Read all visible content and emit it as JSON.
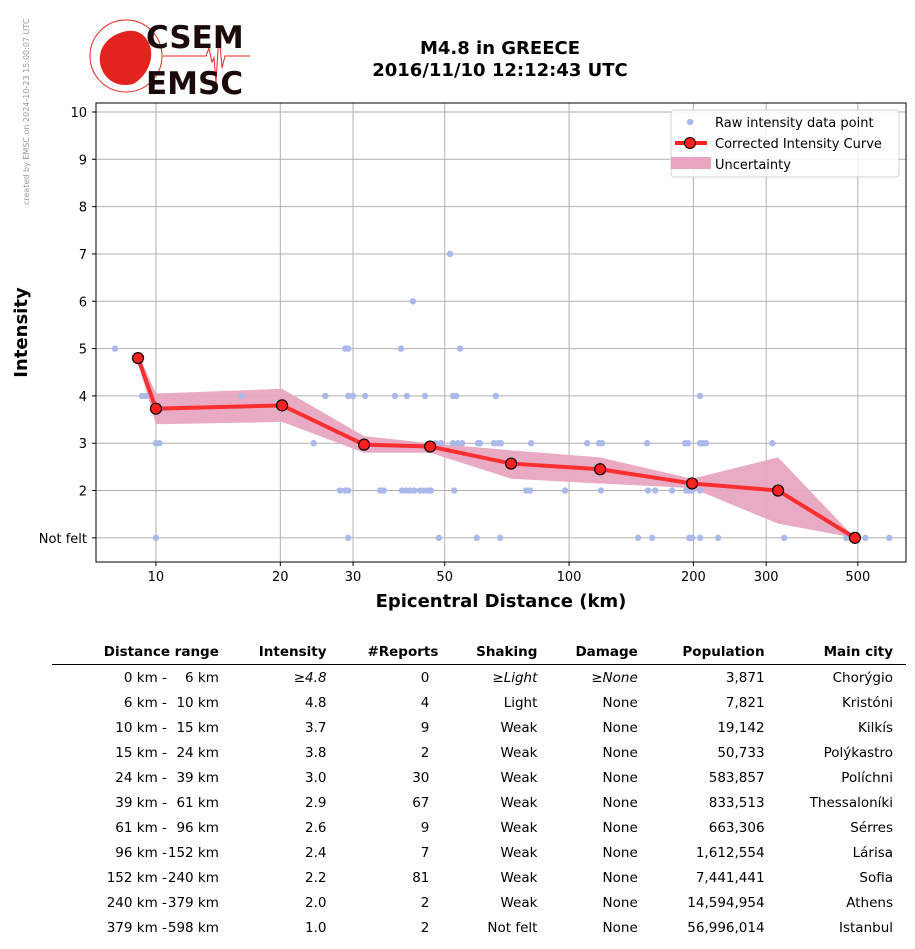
{
  "credit": "created by EMSC on 2024-10-23 15:00:07 UTC",
  "logo": {
    "top": "CSEM",
    "bottom": "EMSC"
  },
  "title_line1": "M4.8 in GREECE",
  "title_line2": "2016/11/10 12:12:43 UTC",
  "colors": {
    "raw": "#aab8ea",
    "curve": "#ff2020",
    "marker": "#ff2020",
    "band": "#e8a6c0",
    "logo": "#e3241e"
  },
  "chart_data": {
    "type": "line",
    "xlabel": "Epicentral Distance (km)",
    "ylabel": "Intensity",
    "xscale": "log",
    "xlim": [
      7.16,
      654
    ],
    "ylim": [
      0.49,
      10.19
    ],
    "xticks": [
      10,
      20,
      30,
      50,
      100,
      200,
      300,
      500
    ],
    "xtick_labels": [
      "10",
      "20",
      "30",
      "50",
      "100",
      "200",
      "300",
      "500"
    ],
    "yticks": [
      1,
      2,
      3,
      4,
      5,
      6,
      7,
      8,
      9,
      10
    ],
    "ytick_labels": [
      "Not felt",
      "2",
      "3",
      "4",
      "5",
      "6",
      "7",
      "8",
      "9",
      "10"
    ],
    "grid": true,
    "legend": {
      "placement": "top-right",
      "entries": [
        "Raw intensity data point",
        "Corrected Intensity Curve",
        "Uncertainty"
      ]
    },
    "curve": {
      "x": [
        9.05,
        10,
        20.2,
        31.9,
        46.1,
        72.4,
        118.9,
        198.5,
        320.6,
        492
      ],
      "y": [
        4.8,
        3.73,
        3.8,
        2.97,
        2.93,
        2.57,
        2.45,
        2.15,
        2.0,
        1.0
      ]
    },
    "uncertainty": {
      "x": [
        9.05,
        10,
        20.2,
        31.9,
        46.1,
        72.4,
        118.9,
        198.5,
        320.6,
        492
      ],
      "upper": [
        4.9,
        4.05,
        4.15,
        3.15,
        3.0,
        2.85,
        2.7,
        2.25,
        2.7,
        1.0
      ],
      "lower": [
        4.7,
        3.4,
        3.45,
        2.8,
        2.8,
        2.25,
        2.15,
        2.05,
        1.3,
        1.0
      ]
    },
    "raw_points": [
      [
        7.96,
        5
      ],
      [
        9.25,
        4
      ],
      [
        9.46,
        4
      ],
      [
        10,
        3
      ],
      [
        10.2,
        3
      ],
      [
        10,
        1
      ],
      [
        16.1,
        4
      ],
      [
        24.1,
        3
      ],
      [
        25.7,
        4
      ],
      [
        27.9,
        2
      ],
      [
        28.7,
        2
      ],
      [
        29.2,
        2
      ],
      [
        28.7,
        5
      ],
      [
        29.2,
        5
      ],
      [
        29.2,
        4
      ],
      [
        30.0,
        4
      ],
      [
        29.2,
        1
      ],
      [
        32.1,
        4
      ],
      [
        34.9,
        2
      ],
      [
        35.6,
        2
      ],
      [
        37.9,
        4
      ],
      [
        39.2,
        5
      ],
      [
        40.5,
        4
      ],
      [
        39.4,
        2
      ],
      [
        40.3,
        2
      ],
      [
        41.2,
        2
      ],
      [
        42.2,
        2
      ],
      [
        41.9,
        6
      ],
      [
        43.6,
        2
      ],
      [
        44.6,
        2
      ],
      [
        44.8,
        4
      ],
      [
        45.6,
        2
      ],
      [
        46.3,
        2
      ],
      [
        48.4,
        1
      ],
      [
        47.6,
        3
      ],
      [
        49.0,
        3
      ],
      [
        51.5,
        7
      ],
      [
        52.4,
        3
      ],
      [
        53.8,
        3
      ],
      [
        55.1,
        3
      ],
      [
        52.4,
        4
      ],
      [
        53.3,
        4
      ],
      [
        52.7,
        2
      ],
      [
        54.5,
        5
      ],
      [
        59.8,
        1
      ],
      [
        60.2,
        3
      ],
      [
        60.9,
        3
      ],
      [
        65.8,
        3
      ],
      [
        67.3,
        3
      ],
      [
        68.4,
        3
      ],
      [
        66.5,
        4
      ],
      [
        68.1,
        1
      ],
      [
        78.7,
        2
      ],
      [
        80.5,
        2
      ],
      [
        80.9,
        3
      ],
      [
        97.8,
        2
      ],
      [
        110.6,
        3
      ],
      [
        118.2,
        3
      ],
      [
        120.2,
        3
      ],
      [
        119.5,
        2
      ],
      [
        146.9,
        1
      ],
      [
        154.5,
        3
      ],
      [
        155.3,
        2
      ],
      [
        161.6,
        2
      ],
      [
        158.9,
        1
      ],
      [
        177.6,
        2
      ],
      [
        190.9,
        3
      ],
      [
        194.1,
        3
      ],
      [
        191.9,
        2
      ],
      [
        195.4,
        2
      ],
      [
        198.6,
        2
      ],
      [
        195.4,
        1
      ],
      [
        198.6,
        1
      ],
      [
        207.6,
        4
      ],
      [
        207.6,
        3
      ],
      [
        211.0,
        3
      ],
      [
        214.6,
        3
      ],
      [
        207.6,
        2
      ],
      [
        207.6,
        1
      ],
      [
        229.5,
        1
      ],
      [
        310.5,
        3
      ],
      [
        331.8,
        1
      ],
      [
        468.8,
        1
      ],
      [
        521.2,
        1
      ],
      [
        595.6,
        1
      ]
    ]
  },
  "table": {
    "headers": [
      "Distance range",
      "Intensity",
      "#Reports",
      "Shaking",
      "Damage",
      "Population",
      "Main city"
    ],
    "rows": [
      {
        "from": "0 km -",
        "to": "6 km",
        "intensity": "≥4.8",
        "reports": "0",
        "shaking": "≥Light",
        "damage": "≥None",
        "population": "3,871",
        "city": "Chorýgio"
      },
      {
        "from": "6 km -",
        "to": "10 km",
        "intensity": "4.8",
        "reports": "4",
        "shaking": "Light",
        "damage": "None",
        "population": "7,821",
        "city": "Kristóni"
      },
      {
        "from": "10 km -",
        "to": "15 km",
        "intensity": "3.7",
        "reports": "9",
        "shaking": "Weak",
        "damage": "None",
        "population": "19,142",
        "city": "Kilkís"
      },
      {
        "from": "15 km -",
        "to": "24 km",
        "intensity": "3.8",
        "reports": "2",
        "shaking": "Weak",
        "damage": "None",
        "population": "50,733",
        "city": "Polýkastro"
      },
      {
        "from": "24 km -",
        "to": "39 km",
        "intensity": "3.0",
        "reports": "30",
        "shaking": "Weak",
        "damage": "None",
        "population": "583,857",
        "city": "Políchni"
      },
      {
        "from": "39 km -",
        "to": "61 km",
        "intensity": "2.9",
        "reports": "67",
        "shaking": "Weak",
        "damage": "None",
        "population": "833,513",
        "city": "Thessaloníki"
      },
      {
        "from": "61 km -",
        "to": "96 km",
        "intensity": "2.6",
        "reports": "9",
        "shaking": "Weak",
        "damage": "None",
        "population": "663,306",
        "city": "Sérres"
      },
      {
        "from": "96 km -",
        "to": "152 km",
        "intensity": "2.4",
        "reports": "7",
        "shaking": "Weak",
        "damage": "None",
        "population": "1,612,554",
        "city": "Lárisa"
      },
      {
        "from": "152 km -",
        "to": "240 km",
        "intensity": "2.2",
        "reports": "81",
        "shaking": "Weak",
        "damage": "None",
        "population": "7,441,441",
        "city": "Sofia"
      },
      {
        "from": "240 km -",
        "to": "379 km",
        "intensity": "2.0",
        "reports": "2",
        "shaking": "Weak",
        "damage": "None",
        "population": "14,594,954",
        "city": "Athens"
      },
      {
        "from": "379 km -",
        "to": "598 km",
        "intensity": "1.0",
        "reports": "2",
        "shaking": "Not felt",
        "damage": "None",
        "population": "56,996,014",
        "city": "Istanbul"
      }
    ]
  }
}
